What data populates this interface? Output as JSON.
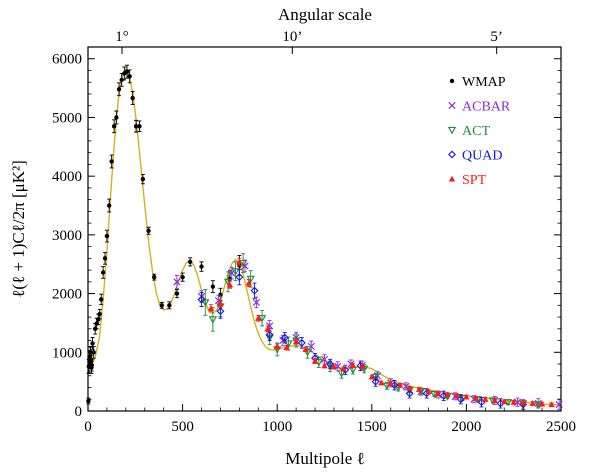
{
  "chart_data": {
    "type": "scatter",
    "xlabel": "Multipole ℓ",
    "ylabel": "ℓ(ℓ + 1)Cℓ/2π  [μK²]",
    "top_axis_label": "Angular scale",
    "top_ticks": [
      {
        "label": "1°",
        "x": 180
      },
      {
        "label": "10’",
        "x": 1080
      },
      {
        "label": "5’",
        "x": 2160
      }
    ],
    "xlim": [
      0,
      2500
    ],
    "ylim": [
      0,
      6200
    ],
    "xticks": [
      0,
      500,
      1000,
      1500,
      2000,
      2500
    ],
    "yticks": [
      0,
      1000,
      2000,
      3000,
      4000,
      5000,
      6000
    ],
    "legend_position": "top-right",
    "colors": {
      "WMAP": "#000000",
      "ACBAR": "#8a2be2",
      "ACT": "#1e8c3a",
      "QUAD": "#1414e6",
      "SPT": "#ff1a1a",
      "model": "#d4b21a"
    },
    "series": [
      {
        "name": "WMAP",
        "marker": "dot",
        "points": [
          [
            2,
            170,
            50
          ],
          [
            4,
            760,
            120
          ],
          [
            6,
            760,
            110
          ],
          [
            8,
            840,
            110
          ],
          [
            10,
            930,
            100
          ],
          [
            12,
            990,
            100
          ],
          [
            14,
            1000,
            100
          ],
          [
            16,
            850,
            100
          ],
          [
            18,
            740,
            100
          ],
          [
            20,
            780,
            100
          ],
          [
            24,
            1150,
            100
          ],
          [
            30,
            1000,
            100
          ],
          [
            38,
            1400,
            90
          ],
          [
            46,
            1490,
            90
          ],
          [
            54,
            1560,
            90
          ],
          [
            62,
            1650,
            80
          ],
          [
            70,
            1900,
            90
          ],
          [
            80,
            2360,
            100
          ],
          [
            90,
            2600,
            100
          ],
          [
            100,
            2980,
            100
          ],
          [
            112,
            3500,
            110
          ],
          [
            125,
            4250,
            110
          ],
          [
            138,
            4850,
            110
          ],
          [
            150,
            5000,
            110
          ],
          [
            164,
            5480,
            110
          ],
          [
            178,
            5640,
            110
          ],
          [
            192,
            5750,
            110
          ],
          [
            206,
            5780,
            110
          ],
          [
            220,
            5700,
            110
          ],
          [
            236,
            5330,
            110
          ],
          [
            254,
            4850,
            100
          ],
          [
            272,
            4850,
            90
          ],
          [
            290,
            3950,
            80
          ],
          [
            320,
            3070,
            60
          ],
          [
            350,
            2280,
            50
          ],
          [
            390,
            1800,
            50
          ],
          [
            430,
            1800,
            60
          ],
          [
            470,
            2000,
            70
          ],
          [
            500,
            2280,
            70
          ],
          [
            540,
            2540,
            70
          ],
          [
            600,
            2460,
            80
          ],
          [
            660,
            2120,
            100
          ],
          [
            700,
            1980,
            110
          ],
          [
            750,
            2250,
            140
          ],
          [
            800,
            2480,
            170
          ]
        ]
      },
      {
        "name": "ACBAR",
        "marker": "x",
        "points": [
          [
            470,
            2200,
            110
          ],
          [
            600,
            1950,
            100
          ],
          [
            690,
            1880,
            90
          ],
          [
            760,
            2350,
            100
          ],
          [
            830,
            2470,
            100
          ],
          [
            890,
            1850,
            90
          ],
          [
            960,
            1450,
            90
          ],
          [
            1030,
            1200,
            90
          ],
          [
            1100,
            1250,
            90
          ],
          [
            1180,
            1100,
            90
          ],
          [
            1250,
            880,
            80
          ],
          [
            1320,
            760,
            80
          ],
          [
            1390,
            800,
            70
          ],
          [
            1450,
            780,
            70
          ],
          [
            1530,
            600,
            70
          ],
          [
            1600,
            480,
            70
          ],
          [
            1680,
            420,
            60
          ],
          [
            1760,
            330,
            60
          ],
          [
            1850,
            280,
            60
          ],
          [
            1940,
            250,
            60
          ],
          [
            2040,
            200,
            60
          ],
          [
            2150,
            180,
            70
          ],
          [
            2270,
            150,
            70
          ],
          [
            2380,
            130,
            80
          ],
          [
            2490,
            110,
            90
          ]
        ]
      },
      {
        "name": "ACT",
        "marker": "tri-down",
        "points": [
          [
            620,
            1850,
            220
          ],
          [
            660,
            1560,
            200
          ],
          [
            700,
            1780,
            170
          ],
          [
            740,
            2200,
            170
          ],
          [
            780,
            2380,
            160
          ],
          [
            820,
            2520,
            160
          ],
          [
            860,
            2250,
            140
          ],
          [
            920,
            1580,
            130
          ],
          [
            960,
            1250,
            120
          ],
          [
            1000,
            1050,
            110
          ],
          [
            1060,
            1150,
            110
          ],
          [
            1100,
            1200,
            110
          ],
          [
            1160,
            1000,
            100
          ],
          [
            1220,
            830,
            90
          ],
          [
            1280,
            760,
            90
          ],
          [
            1340,
            640,
            80
          ],
          [
            1400,
            700,
            70
          ],
          [
            1460,
            720,
            70
          ],
          [
            1520,
            580,
            60
          ],
          [
            1580,
            430,
            60
          ],
          [
            1640,
            400,
            60
          ],
          [
            1700,
            360,
            50
          ],
          [
            1760,
            340,
            50
          ],
          [
            1830,
            290,
            40
          ],
          [
            1900,
            250,
            40
          ],
          [
            1980,
            220,
            40
          ],
          [
            2060,
            200,
            40
          ],
          [
            2140,
            180,
            40
          ],
          [
            2220,
            150,
            40
          ],
          [
            2300,
            130,
            40
          ],
          [
            2380,
            110,
            40
          ]
        ]
      },
      {
        "name": "QUAD",
        "marker": "diamond",
        "points": [
          [
            600,
            1900,
            120
          ],
          [
            700,
            1700,
            120
          ],
          [
            800,
            2280,
            130
          ],
          [
            880,
            2050,
            130
          ],
          [
            960,
            1300,
            100
          ],
          [
            1040,
            1250,
            90
          ],
          [
            1130,
            1160,
            90
          ],
          [
            1200,
            900,
            80
          ],
          [
            1280,
            800,
            80
          ],
          [
            1360,
            700,
            80
          ],
          [
            1440,
            770,
            80
          ],
          [
            1520,
            500,
            80
          ],
          [
            1620,
            440,
            80
          ],
          [
            1700,
            300,
            80
          ],
          [
            1790,
            300,
            80
          ],
          [
            1880,
            260,
            80
          ],
          [
            1970,
            200,
            80
          ],
          [
            2080,
            150,
            80
          ],
          [
            2180,
            130,
            80
          ],
          [
            2300,
            110,
            80
          ]
        ]
      },
      {
        "name": "SPT",
        "marker": "tri-up",
        "points": [
          [
            650,
            1750,
            60
          ],
          [
            700,
            1830,
            60
          ],
          [
            750,
            2150,
            60
          ],
          [
            800,
            2540,
            60
          ],
          [
            850,
            2180,
            60
          ],
          [
            900,
            1580,
            50
          ],
          [
            950,
            1400,
            50
          ],
          [
            1000,
            1100,
            40
          ],
          [
            1050,
            1080,
            40
          ],
          [
            1100,
            1180,
            40
          ],
          [
            1150,
            1050,
            40
          ],
          [
            1200,
            850,
            40
          ],
          [
            1250,
            770,
            30
          ],
          [
            1300,
            750,
            30
          ],
          [
            1350,
            720,
            30
          ],
          [
            1400,
            780,
            30
          ],
          [
            1450,
            760,
            30
          ],
          [
            1500,
            580,
            30
          ],
          [
            1550,
            480,
            30
          ],
          [
            1600,
            470,
            30
          ],
          [
            1650,
            440,
            30
          ],
          [
            1700,
            390,
            30
          ],
          [
            1750,
            370,
            30
          ],
          [
            1800,
            330,
            30
          ],
          [
            1850,
            300,
            30
          ],
          [
            1900,
            280,
            30
          ],
          [
            1950,
            260,
            30
          ],
          [
            2000,
            240,
            30
          ],
          [
            2050,
            220,
            30
          ],
          [
            2100,
            200,
            30
          ],
          [
            2150,
            180,
            30
          ],
          [
            2200,
            160,
            30
          ],
          [
            2250,
            150,
            30
          ],
          [
            2300,
            140,
            30
          ],
          [
            2350,
            130,
            30
          ],
          [
            2400,
            120,
            30
          ],
          [
            2450,
            110,
            30
          ]
        ]
      }
    ],
    "model_curve": {
      "x": [
        2,
        10,
        20,
        30,
        40,
        60,
        80,
        100,
        120,
        140,
        160,
        180,
        200,
        220,
        240,
        260,
        280,
        300,
        320,
        340,
        360,
        380,
        400,
        420,
        440,
        460,
        480,
        500,
        520,
        540,
        560,
        580,
        600,
        620,
        640,
        660,
        680,
        700,
        720,
        740,
        760,
        780,
        800,
        820,
        840,
        860,
        880,
        900,
        920,
        940,
        960,
        980,
        1000,
        1050,
        1100,
        1150,
        1200,
        1250,
        1300,
        1350,
        1400,
        1450,
        1500,
        1550,
        1600,
        1700,
        1800,
        1900,
        2000,
        2100,
        2200,
        2300,
        2400,
        2500
      ],
      "y": [
        1000,
        780,
        800,
        850,
        950,
        1250,
        1900,
        2700,
        3700,
        4600,
        5300,
        5700,
        5820,
        5700,
        5350,
        4800,
        4150,
        3500,
        2900,
        2400,
        2020,
        1800,
        1720,
        1740,
        1850,
        2020,
        2220,
        2400,
        2530,
        2560,
        2480,
        2300,
        2060,
        1840,
        1700,
        1660,
        1720,
        1880,
        2100,
        2330,
        2510,
        2580,
        2520,
        2330,
        2060,
        1780,
        1520,
        1320,
        1180,
        1090,
        1050,
        1040,
        1050,
        1090,
        1120,
        1080,
        970,
        850,
        760,
        720,
        740,
        760,
        720,
        620,
        530,
        420,
        360,
        310,
        260,
        220,
        180,
        150,
        120,
        100
      ]
    }
  }
}
